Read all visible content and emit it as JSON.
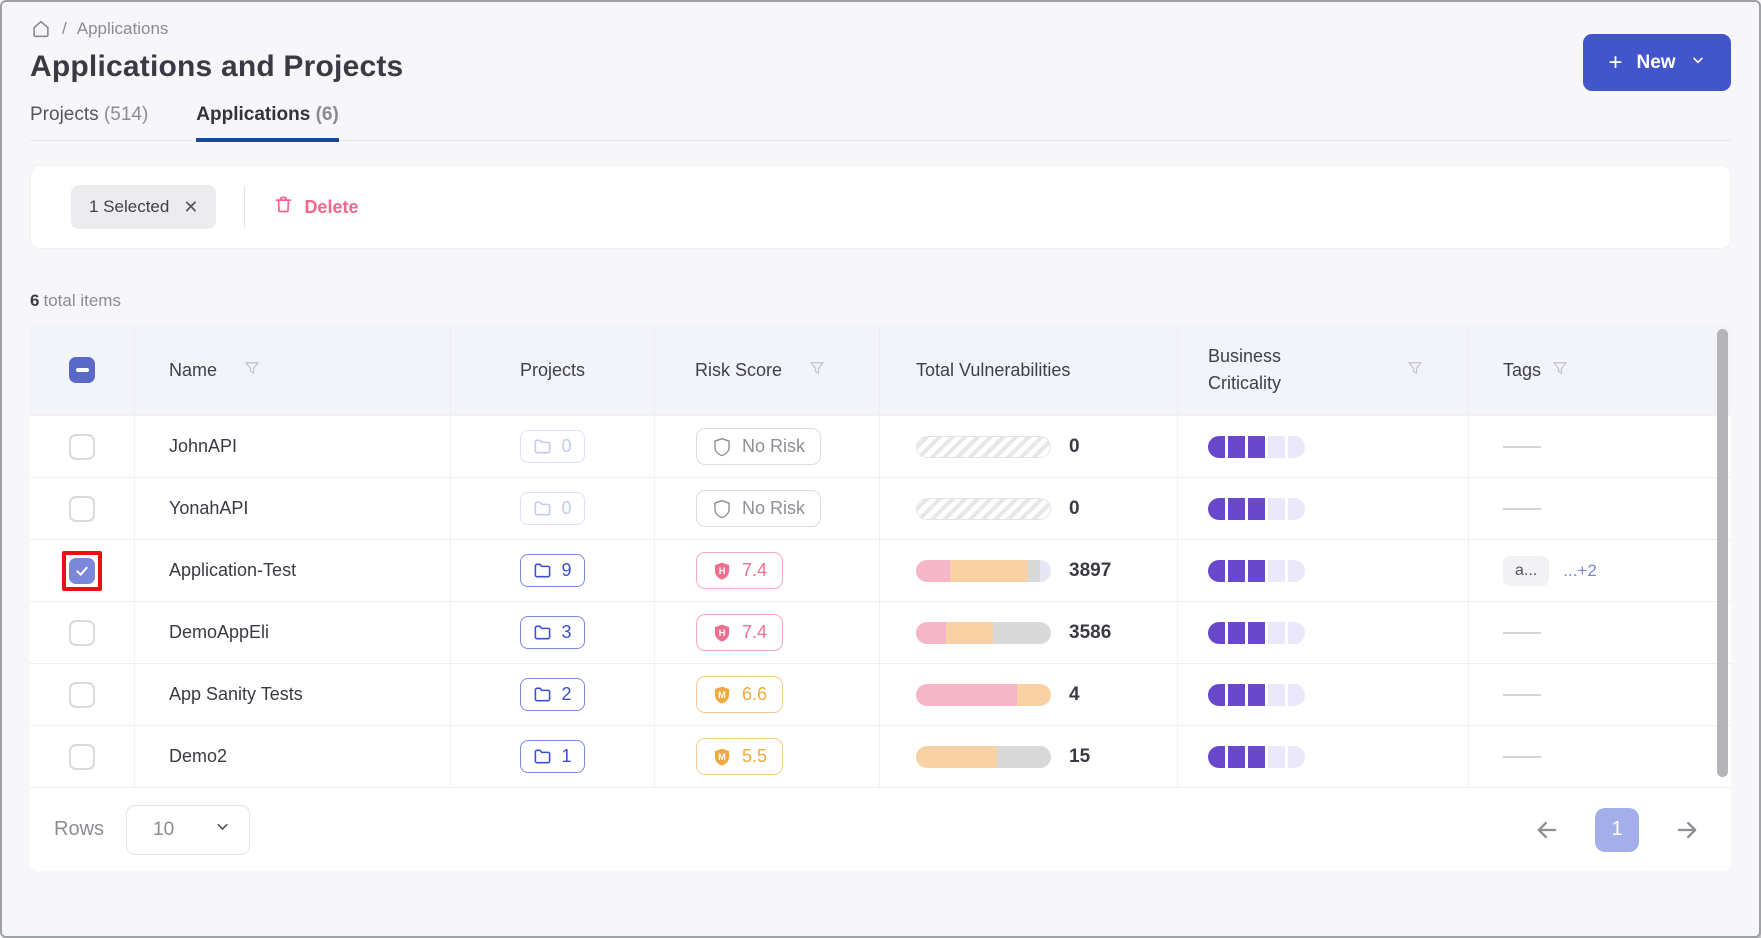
{
  "colors": {
    "accent_blue": "#4355cb",
    "tab_underline": "#1a4a96",
    "delete_pink": "#f2688c",
    "risk_high": "#ef6f8e",
    "risk_medium": "#f1a93e",
    "criticality_filled": "#6a48cc",
    "criticality_empty": "#ece8fb",
    "highlight_red": "#e51313",
    "pink": "#f5b6c8",
    "orange": "#f8d2a4",
    "gray": "#d9d9d9",
    "lavender": "#e6e6f7"
  },
  "breadcrumb": {
    "separator": "/",
    "current": "Applications"
  },
  "header": {
    "title": "Applications and Projects"
  },
  "new_button": {
    "plus": "+",
    "label": "New"
  },
  "tabs": [
    {
      "label": "Projects",
      "count": "(514)"
    },
    {
      "label": "Applications",
      "count": "(6)"
    }
  ],
  "selection_bar": {
    "chip_label": "1 Selected",
    "close": "✕",
    "delete_label": "Delete"
  },
  "summary": {
    "count": "6",
    "label": "total items"
  },
  "table": {
    "columns": [
      {
        "label": "Name",
        "filter": true
      },
      {
        "label": "Projects",
        "filter": false
      },
      {
        "label": "Risk Score",
        "filter": true
      },
      {
        "label": "Total Vulnerabilities",
        "filter": false
      },
      {
        "label": "Business Criticality",
        "filter": true
      },
      {
        "label": "Tags",
        "filter": true
      }
    ],
    "rows": [
      {
        "name": "JohnAPI",
        "selected": false,
        "projects": {
          "count": "0",
          "active": false
        },
        "risk": {
          "level": "none",
          "label": "No Risk",
          "letter": ""
        },
        "vulnerabilities": {
          "count": "0",
          "bar": [
            {
              "key": "hatch",
              "pct": 100
            }
          ]
        },
        "criticality": {
          "filled": 3,
          "total": 5
        },
        "tags": null
      },
      {
        "name": "YonahAPI",
        "selected": false,
        "projects": {
          "count": "0",
          "active": false
        },
        "risk": {
          "level": "none",
          "label": "No Risk",
          "letter": ""
        },
        "vulnerabilities": {
          "count": "0",
          "bar": [
            {
              "key": "hatch",
              "pct": 100
            }
          ]
        },
        "criticality": {
          "filled": 3,
          "total": 5
        },
        "tags": null
      },
      {
        "name": "Application-Test",
        "selected": true,
        "projects": {
          "count": "9",
          "active": true
        },
        "risk": {
          "level": "high",
          "label": "7.4",
          "letter": "H"
        },
        "vulnerabilities": {
          "count": "3897",
          "bar": [
            {
              "key": "pink",
              "pct": 25
            },
            {
              "key": "orange",
              "pct": 58
            },
            {
              "key": "gray",
              "pct": 9
            },
            {
              "key": "lavender",
              "pct": 8
            }
          ]
        },
        "criticality": {
          "filled": 3,
          "total": 5
        },
        "tags": {
          "chip": "a...",
          "more": "...+2"
        }
      },
      {
        "name": "DemoAppEli",
        "selected": false,
        "projects": {
          "count": "3",
          "active": true
        },
        "risk": {
          "level": "high",
          "label": "7.4",
          "letter": "H"
        },
        "vulnerabilities": {
          "count": "3586",
          "bar": [
            {
              "key": "pink",
              "pct": 22
            },
            {
              "key": "orange",
              "pct": 35
            },
            {
              "key": "gray",
              "pct": 43
            }
          ]
        },
        "criticality": {
          "filled": 3,
          "total": 5
        },
        "tags": null
      },
      {
        "name": "App Sanity Tests",
        "selected": false,
        "projects": {
          "count": "2",
          "active": true
        },
        "risk": {
          "level": "medium",
          "label": "6.6",
          "letter": "M"
        },
        "vulnerabilities": {
          "count": "4",
          "bar": [
            {
              "key": "pink",
              "pct": 75
            },
            {
              "key": "orange",
              "pct": 25
            }
          ]
        },
        "criticality": {
          "filled": 3,
          "total": 5
        },
        "tags": null
      },
      {
        "name": "Demo2",
        "selected": false,
        "projects": {
          "count": "1",
          "active": true
        },
        "risk": {
          "level": "medium",
          "label": "5.5",
          "letter": "M"
        },
        "vulnerabilities": {
          "count": "15",
          "bar": [
            {
              "key": "orange",
              "pct": 60
            },
            {
              "key": "gray",
              "pct": 40
            }
          ]
        },
        "criticality": {
          "filled": 3,
          "total": 5
        },
        "tags": null
      }
    ]
  },
  "pagination": {
    "rows_label": "Rows",
    "page_size": "10",
    "current_page": "1"
  }
}
